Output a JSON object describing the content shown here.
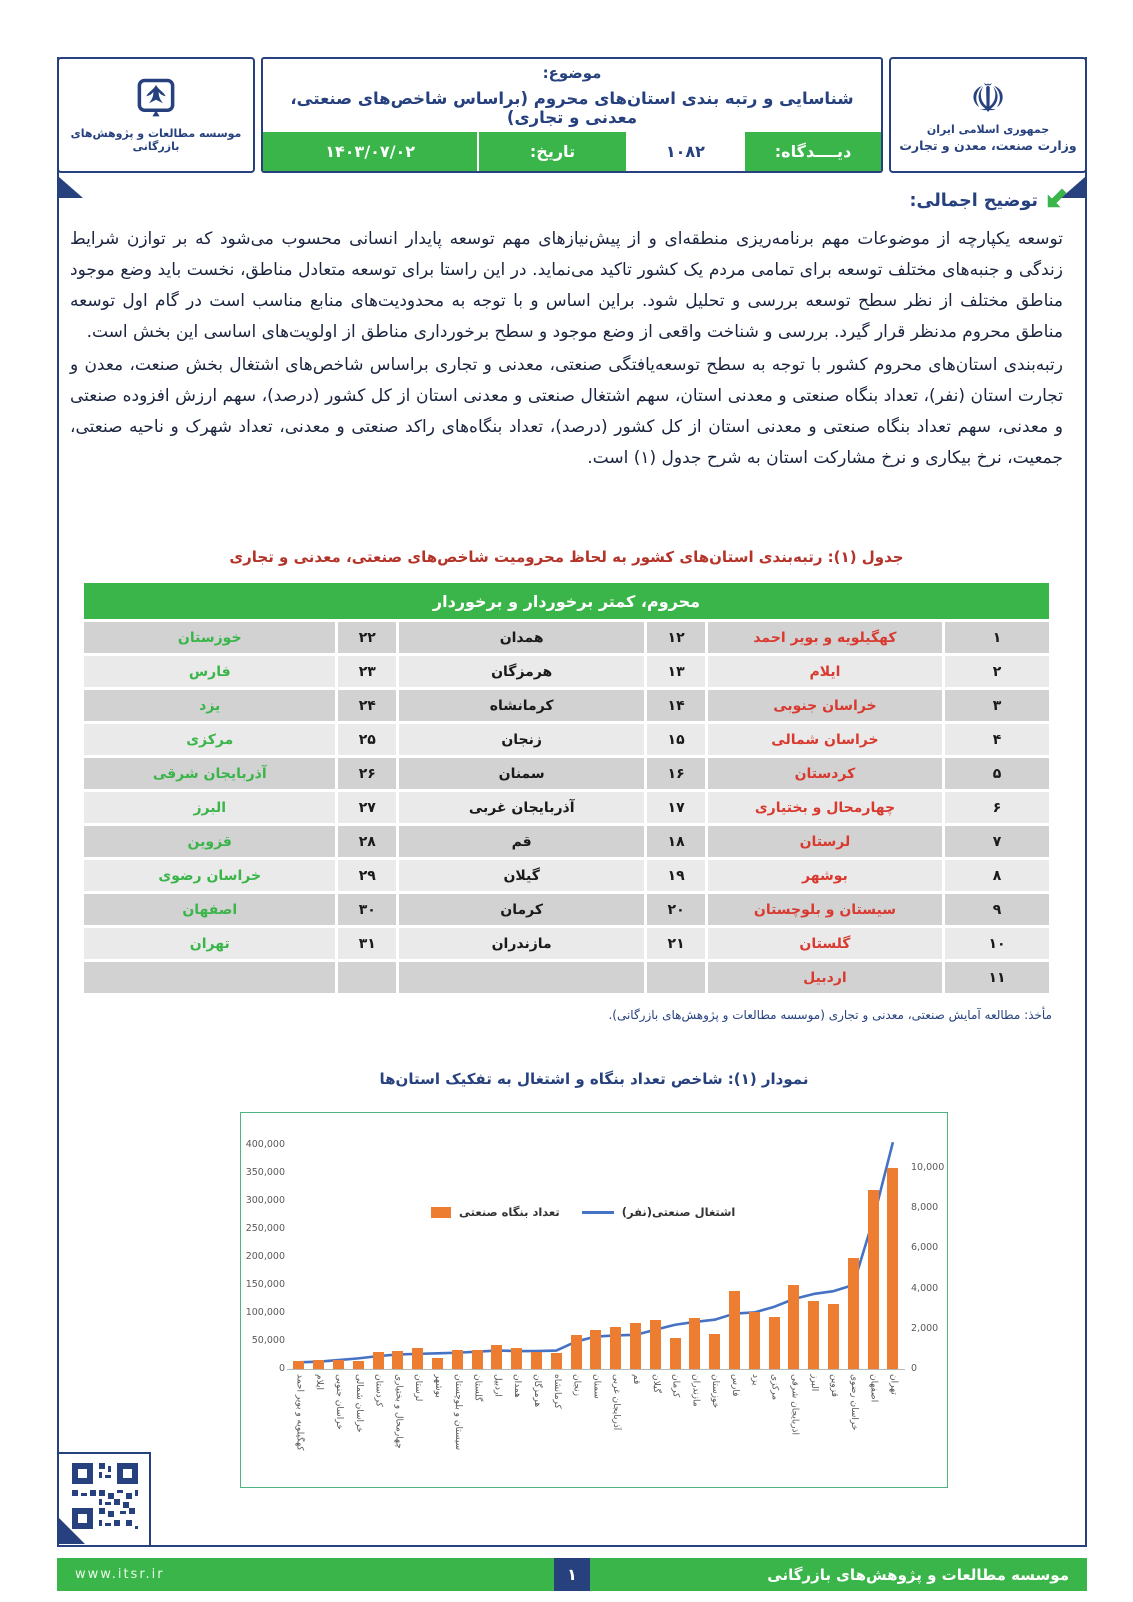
{
  "header": {
    "right_logo": {
      "emblem_icon": "iran-emblem",
      "line1": "جمهوری اسلامی ایران",
      "line2": "وزارت صنعت، معدن و تجارت"
    },
    "left_logo": {
      "logo_icon": "itsr-dove-logo",
      "name": "موسسه مطالعات و پژوهش‌های بازرگانی"
    },
    "subject_label": "موضوع:",
    "title": "شناسایی و رتبه بندی استان‌های محروم (براساس شاخص‌های صنعتی، معدنی و تجاری)",
    "viewpoint_label": "دیــــدگاه:",
    "viewpoint_number": "۱۰۸۲",
    "date_label": "تاریخ:",
    "date_value": "۱۴۰۳/۰۷/۰۲"
  },
  "section": {
    "heading": "توضیح اجمالی:",
    "paragraph1": "توسعه یکپارچه از موضوعات مهم برنامه‌ریزی منطقه‌ای و از پیش‌نیازهای مهم توسعه پایدار انسانی محسوب می‌شود که بر توازن شرایط زندگی و جنبه‌های مختلف توسعه برای تمامی مردم یک کشور تاکید می‌نماید. در این راستا برای توسعه متعادل مناطق، نخست باید وضع موجود مناطق مختلف از نظر سطح توسعه بررسی و تحلیل شود. براین اساس و با توجه به محدودیت‌های منابع مناسب است در گام اول توسعه مناطق محروم مدنظر قرار گیرد. بررسی و شناخت واقعی از وضع موجود و سطح برخورداری مناطق از اولویت‌های اساسی این بخش است.",
    "paragraph2": "رتبه‌بندی استان‌های محروم کشور با توجه به سطح توسعه‌یافتگی صنعتی، معدنی و تجاری براساس شاخص‌های اشتغال بخش صنعت، معدن و تجارت استان (نفر)، تعداد بنگاه صنعتی و معدنی استان، سهم اشتغال صنعتی و معدنی استان از کل کشور (درصد)، سهم ارزش افزوده صنعتی و معدنی، سهم تعداد بنگاه صنعتی و معدنی استان از کل کشور (درصد)، تعداد بنگاه‌های راکد صنعتی و معدنی، تعداد شهرک و ناحیه صنعتی، جمعیت، نرخ بیکاری و نرخ مشارکت استان به شرح جدول (۱) است."
  },
  "table": {
    "caption": "جدول (۱): رتبه‌بندی استان‌های کشور به لحاظ محرومیت شاخص‌های صنعتی، معدنی و تجاری",
    "band_header": "محروم، کمتر برخوردار و برخوردار",
    "rows": [
      [
        "۱",
        "کهگیلویه و بویر احمد",
        "۱۲",
        "همدان",
        "۲۲",
        "خوزستان"
      ],
      [
        "۲",
        "ایلام",
        "۱۳",
        "هرمزگان",
        "۲۳",
        "فارس"
      ],
      [
        "۳",
        "خراسان جنوبی",
        "۱۴",
        "کرمانشاه",
        "۲۴",
        "یزد"
      ],
      [
        "۴",
        "خراسان شمالی",
        "۱۵",
        "زنجان",
        "۲۵",
        "مرکزی"
      ],
      [
        "۵",
        "کردستان",
        "۱۶",
        "سمنان",
        "۲۶",
        "آذربایجان شرقی"
      ],
      [
        "۶",
        "چهارمحال و بختیاری",
        "۱۷",
        "آذربایجان غربی",
        "۲۷",
        "البرز"
      ],
      [
        "۷",
        "لرستان",
        "۱۸",
        "قم",
        "۲۸",
        "قزوین"
      ],
      [
        "۸",
        "بوشهر",
        "۱۹",
        "گیلان",
        "۲۹",
        "خراسان رضوی"
      ],
      [
        "۹",
        "سیستان و بلوچستان",
        "۲۰",
        "کرمان",
        "۳۰",
        "اصفهان"
      ],
      [
        "۱۰",
        "گلستان",
        "۲۱",
        "مازندران",
        "۳۱",
        "تهران"
      ],
      [
        "۱۱",
        "اردبیل",
        "",
        "",
        "",
        ""
      ]
    ],
    "source_note": "مأخذ: مطالعه آمایش صنعتی، معدنی و تجاری (موسسه مطالعات و پژوهش‌های بازرگانی)."
  },
  "chart": {
    "caption": "نمودار (۱): شاخص تعداد بنگاه و اشتغال به تفکیک استان‌ها"
  },
  "chart_data": {
    "type": "bar",
    "combo": "bar+line",
    "title": "نمودار (۱): شاخص تعداد بنگاه و اشتغال به تفکیک استان‌ها",
    "categories": [
      "کهگیلویه و بویر احمد",
      "ایلام",
      "خراسان جنوبی",
      "خراسان شمالی",
      "کردستان",
      "چهارمحال و بختیاری",
      "لرستان",
      "بوشهر",
      "سیستان و بلوچستان",
      "گلستان",
      "اردبیل",
      "همدان",
      "هرمزگان",
      "کرمانشاه",
      "زنجان",
      "سمنان",
      "آذربایجان غربی",
      "قم",
      "گیلان",
      "کرمان",
      "مازندران",
      "خوزستان",
      "فارس",
      "یزد",
      "مرکزی",
      "آذربایجان شرقی",
      "البرز",
      "قزوین",
      "خراسان رضوی",
      "اصفهان",
      "تهران"
    ],
    "series": [
      {
        "name": "تعداد بنگاه صنعتی",
        "type": "bar",
        "axis": "right",
        "color": "#ED7D31",
        "values": [
          420,
          430,
          450,
          400,
          850,
          880,
          1050,
          530,
          950,
          950,
          1200,
          1050,
          850,
          800,
          1700,
          1950,
          2100,
          2300,
          2450,
          1550,
          2550,
          1750,
          3900,
          2850,
          2600,
          4200,
          3400,
          3250,
          5500,
          8900,
          10000
        ]
      },
      {
        "name": "اشتغال صنعتی(نفر)",
        "type": "line",
        "axis": "left",
        "color": "#4472C4",
        "values": [
          12000,
          13000,
          16000,
          19000,
          23000,
          26000,
          27000,
          28000,
          29000,
          31000,
          33000,
          32000,
          32000,
          33000,
          49000,
          58000,
          60000,
          61000,
          70000,
          79000,
          84000,
          88000,
          99000,
          101000,
          111000,
          125000,
          134000,
          139000,
          150000,
          266000,
          405000
        ]
      }
    ],
    "left_axis": {
      "min": 0,
      "max": 400000,
      "step": 50000,
      "tick_labels": [
        "0",
        "50,000",
        "100,000",
        "150,000",
        "200,000",
        "250,000",
        "300,000",
        "350,000",
        "400,000"
      ]
    },
    "right_axis": {
      "min": 0,
      "max": 10000,
      "step": 2000,
      "tick_labels": [
        "0",
        "2,000",
        "4,000",
        "6,000",
        "8,000",
        "10,000"
      ]
    },
    "legend_position": "inside-top",
    "grid": false
  },
  "footer": {
    "institute": "موسسه مطالعات و پژوهش‌های بازرگانی",
    "page_number": "۱",
    "website": "www.itsr.ir"
  },
  "colors": {
    "navy": "#26417e",
    "green": "#3ab54a",
    "caption_red": "#b5342a",
    "deprived_red": "#d93a2f",
    "bar_orange": "#ED7D31",
    "line_blue": "#4472C4"
  }
}
